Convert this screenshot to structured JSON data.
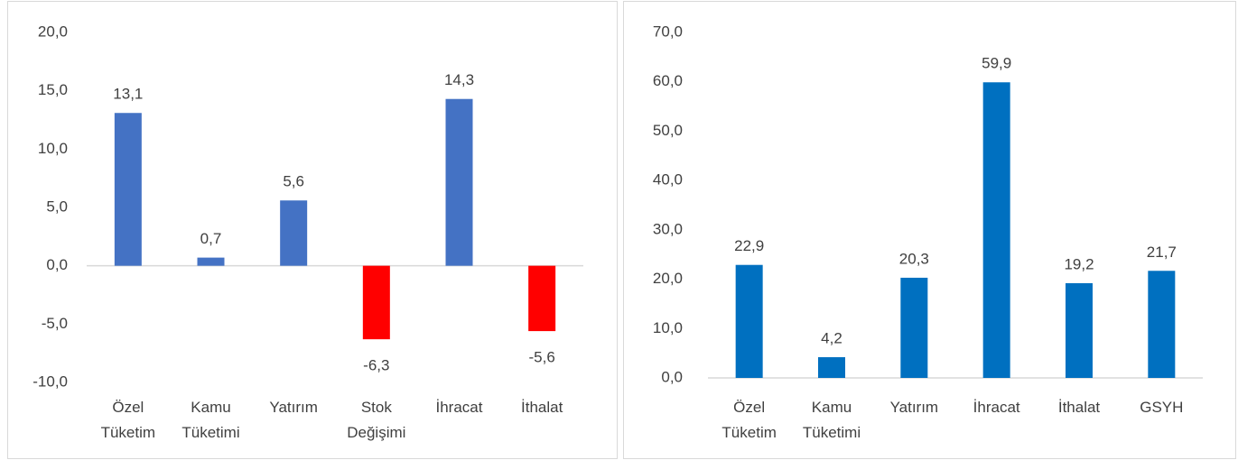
{
  "chart_data": [
    {
      "type": "bar",
      "categories": [
        "Özel Tüketim",
        "Kamu Tüketimi",
        "Yatırım",
        "Stok Değişimi",
        "İhracat",
        "İthalat"
      ],
      "values": [
        13.1,
        0.7,
        5.6,
        -6.3,
        14.3,
        -5.6
      ],
      "value_labels": [
        "13,1",
        "0,7",
        "5,6",
        "-6,3",
        "14,3",
        "-5,6"
      ],
      "colors": [
        "#4472c4",
        "#4472c4",
        "#4472c4",
        "#ff0000",
        "#4472c4",
        "#ff0000"
      ],
      "ylim": [
        -10,
        20
      ],
      "yticks": [
        {
          "value": -10,
          "label": "-10,0"
        },
        {
          "value": -5,
          "label": "-5,0"
        },
        {
          "value": 0,
          "label": "0,0"
        },
        {
          "value": 5,
          "label": "5,0"
        },
        {
          "value": 10,
          "label": "10,0"
        },
        {
          "value": 15,
          "label": "15,0"
        },
        {
          "value": 20,
          "label": "20,0"
        }
      ],
      "grid": false
    },
    {
      "type": "bar",
      "categories": [
        "Özel Tüketim",
        "Kamu Tüketimi",
        "Yatırım",
        "İhracat",
        "İthalat",
        "GSYH"
      ],
      "values": [
        22.9,
        4.2,
        20.3,
        59.9,
        19.2,
        21.7
      ],
      "value_labels": [
        "22,9",
        "4,2",
        "20,3",
        "59,9",
        "19,2",
        "21,7"
      ],
      "colors": [
        "#0070c0",
        "#0070c0",
        "#0070c0",
        "#0070c0",
        "#0070c0",
        "#0070c0"
      ],
      "ylim": [
        0,
        70
      ],
      "yticks": [
        {
          "value": 0,
          "label": "0,0"
        },
        {
          "value": 10,
          "label": "10,0"
        },
        {
          "value": 20,
          "label": "20,0"
        },
        {
          "value": 30,
          "label": "30,0"
        },
        {
          "value": 40,
          "label": "40,0"
        },
        {
          "value": 50,
          "label": "50,0"
        },
        {
          "value": 60,
          "label": "60,0"
        },
        {
          "value": 70,
          "label": "70,0"
        }
      ],
      "grid": false
    }
  ]
}
